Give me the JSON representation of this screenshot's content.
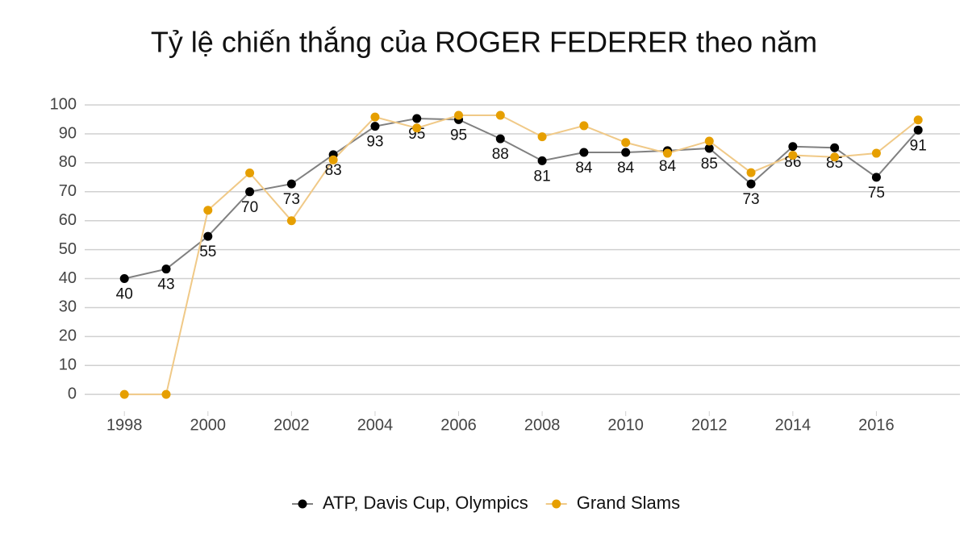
{
  "chart_data": {
    "type": "line",
    "title": "Tỷ lệ chiến thắng của ROGER FEDERER theo năm",
    "x": [
      1998,
      1999,
      2000,
      2001,
      2002,
      2003,
      2004,
      2005,
      2006,
      2007,
      2008,
      2009,
      2010,
      2011,
      2012,
      2013,
      2014,
      2015,
      2016,
      2017
    ],
    "series": [
      {
        "name": "ATP, Davis Cup, Olympics",
        "color": "#000000",
        "line_color": "#808080",
        "values": [
          40,
          43.3,
          54.6,
          70,
          72.7,
          82.8,
          92.6,
          95.3,
          94.9,
          88.3,
          80.7,
          83.6,
          83.6,
          84.2,
          85,
          72.7,
          85.6,
          85.2,
          75,
          91.3
        ],
        "value_labels": [
          "40",
          "43",
          "55",
          "70",
          "73",
          "83",
          "93",
          "95",
          "95",
          "88",
          "81",
          "84",
          "84",
          "84",
          "85",
          "73",
          "86",
          "85",
          "75",
          "91"
        ]
      },
      {
        "name": "Grand Slams",
        "color": "#e69f00",
        "line_color": "#f0c987",
        "values": [
          0,
          0,
          63.6,
          76.5,
          60,
          81,
          95.8,
          92,
          96.4,
          96.4,
          89,
          92.8,
          87,
          83.3,
          87.5,
          76.6,
          82.6,
          82,
          83.3,
          94.8
        ]
      }
    ],
    "xlim": [
      1997.05,
      2018
    ],
    "xticks": [
      1998,
      2000,
      2002,
      2004,
      2006,
      2008,
      2010,
      2012,
      2014,
      2016
    ],
    "ylim": [
      -5.8,
      104.2
    ],
    "yticks": [
      0,
      10,
      20,
      30,
      40,
      50,
      60,
      70,
      80,
      90,
      100
    ],
    "grid": true,
    "legend": "bottom"
  }
}
